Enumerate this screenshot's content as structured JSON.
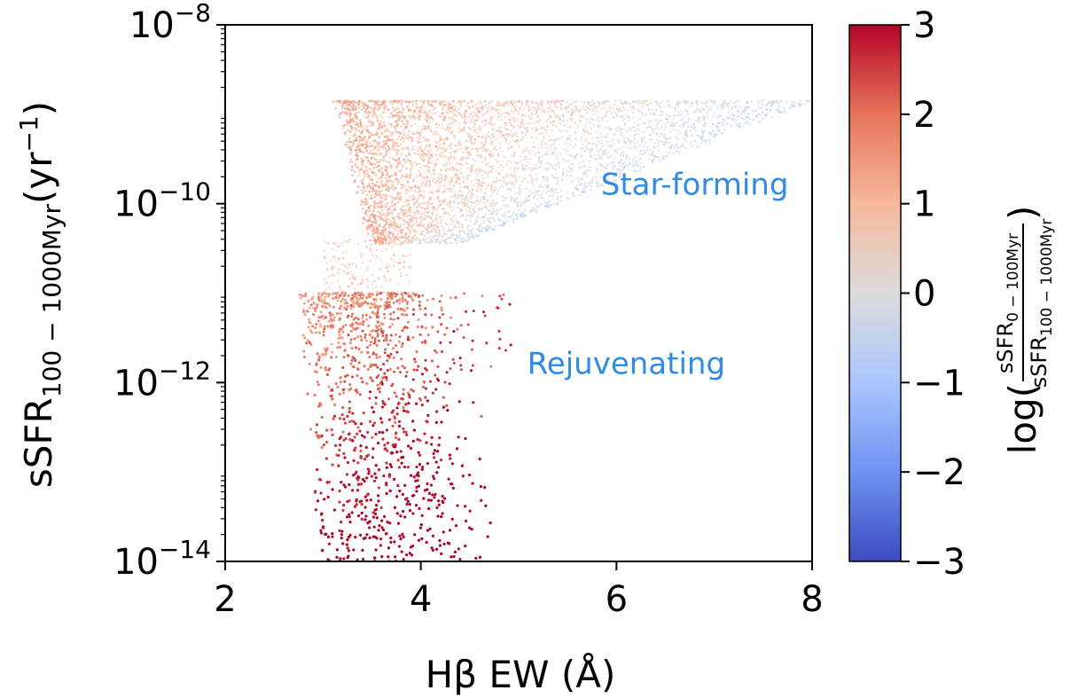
{
  "chart_data": {
    "type": "scatter",
    "xlabel": "Hβ EW (Å)",
    "ylabel": {
      "base": "sSFR",
      "subscript": "100 − 1000Myr",
      "unit": "(yr",
      "unit_exp": "−1",
      "unit_close": ")"
    },
    "x_ticks": [
      "2",
      "4",
      "6",
      "8"
    ],
    "y_ticks": [
      {
        "base": "10",
        "exp": "−8"
      },
      {
        "base": "10",
        "exp": "−10"
      },
      {
        "base": "10",
        "exp": "−12"
      },
      {
        "base": "10",
        "exp": "−14"
      }
    ],
    "xlim": [
      2,
      8
    ],
    "ylim_log10": [
      -14,
      -8
    ],
    "yscale": "log",
    "grid": false,
    "colorbar": {
      "label_prefix": "log(",
      "numerator": "sSFR",
      "numerator_sub": "0 − 100Myr",
      "denominator": "sSFR",
      "denominator_sub": "100 − 1000Myr",
      "label_suffix": ")",
      "range": [
        -3,
        3
      ],
      "ticks": [
        "3",
        "2",
        "1",
        "0",
        "−1",
        "−2",
        "−3"
      ],
      "colormap": "coolwarm",
      "colors": [
        "#3b4cc0",
        "#6f92f3",
        "#aac7fd",
        "#dddcdc",
        "#f7b89c",
        "#e7745b",
        "#b40426"
      ]
    },
    "annotations": [
      {
        "text": "Star-forming",
        "x": 6.8,
        "log_y": -9.9,
        "color": "#2f8be6"
      },
      {
        "text": "Rejuvenating",
        "x": 6.1,
        "log_y": -11.9,
        "color": "#2f8be6"
      }
    ],
    "populations": [
      {
        "group": "star-forming",
        "x_range": [
          3.1,
          8.0
        ],
        "log_y_range": [
          -10.5,
          -8.85
        ],
        "log_y_cap": -8.85,
        "color_range": [
          -0.5,
          1.5
        ]
      },
      {
        "group": "rejuvenating",
        "x_range": [
          2.7,
          4.9
        ],
        "log_y_range": [
          -14,
          -11
        ],
        "log_y_cap": -11.0,
        "color_range": [
          1.0,
          3.0
        ]
      }
    ]
  }
}
